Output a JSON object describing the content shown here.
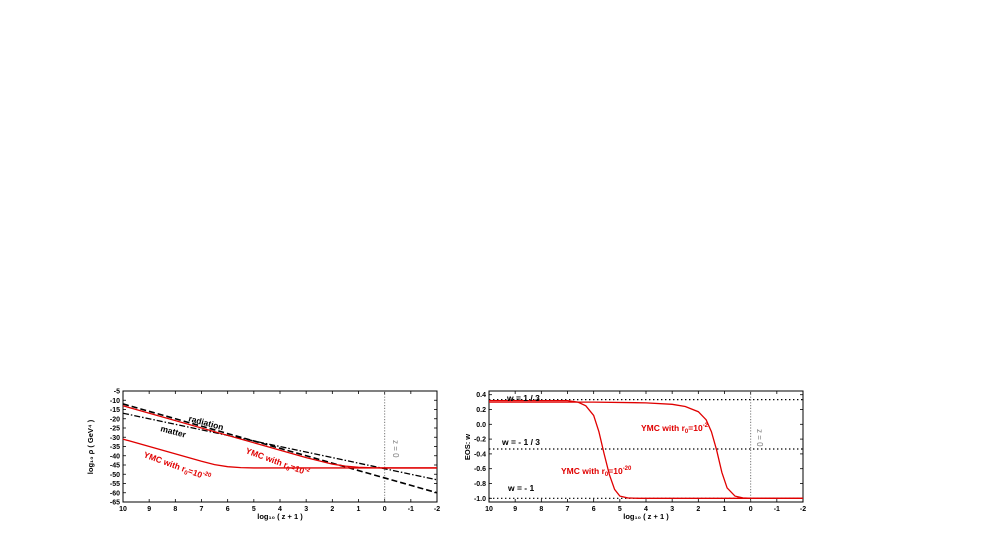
{
  "chart_data": [
    {
      "type": "line",
      "xlabel": "log₁₀ ( z + 1 )",
      "ylabel": "log₁₀ ρ ( GeV⁴ )",
      "xlim": [
        10,
        -2
      ],
      "ylim": [
        -65,
        -5
      ],
      "x_ticks": [
        10,
        9,
        8,
        7,
        6,
        5,
        4,
        3,
        2,
        1,
        0,
        -1,
        -2
      ],
      "y_ticks": [
        -5,
        -10,
        -15,
        -20,
        -25,
        -30,
        -35,
        -40,
        -45,
        -50,
        -55,
        -60,
        -65
      ],
      "vline": {
        "x": 0,
        "label": "z = 0"
      },
      "series": [
        {
          "name": "radiation",
          "style": "dashed",
          "color": "#000000",
          "x": [
            10,
            -2
          ],
          "y": [
            -12,
            -60
          ]
        },
        {
          "name": "matter",
          "style": "dashdot",
          "color": "#000000",
          "x": [
            10,
            -2
          ],
          "y": [
            -17,
            -53
          ]
        },
        {
          "name": "YMC with r₀=10⁻²",
          "style": "solid",
          "color": "#e00000",
          "x": [
            10,
            3,
            2,
            1.5,
            1,
            0.5,
            0,
            -2
          ],
          "y": [
            -13,
            -41,
            -44.5,
            -45.6,
            -46.2,
            -46.5,
            -46.6,
            -46.6
          ]
        },
        {
          "name": "YMC with r₀=10⁻²⁰",
          "style": "solid",
          "color": "#e00000",
          "x": [
            10,
            7,
            6.5,
            6,
            5.5,
            5,
            0,
            -2
          ],
          "y": [
            -31,
            -43,
            -44.8,
            -45.9,
            -46.4,
            -46.6,
            -46.6,
            -46.6
          ]
        }
      ],
      "annotations": {
        "radiation": "radiation",
        "matter": "matter",
        "ymc_a_prefix": "YMC with r",
        "ymc_a_sub": "0",
        "ymc_a_suffix": "=10",
        "ymc_a_exp": "-2",
        "ymc_b_prefix": "YMC with r",
        "ymc_b_sub": "0",
        "ymc_b_suffix": "=10",
        "ymc_b_exp": "-20"
      }
    },
    {
      "type": "line",
      "xlabel": "log₁₀ ( z + 1 )",
      "ylabel": "EOS: w",
      "xlim": [
        10,
        -2
      ],
      "ylim": [
        -1.05,
        0.45
      ],
      "x_ticks": [
        10,
        9,
        8,
        7,
        6,
        5,
        4,
        3,
        2,
        1,
        0,
        -1,
        -2
      ],
      "y_ticks": [
        0.4,
        0.2,
        0.0,
        -0.2,
        -0.4,
        -0.6,
        -0.8,
        -1.0
      ],
      "y_tick_labels": [
        "0.4",
        "0.2",
        "0.0",
        "-0.2",
        "-0.4",
        "-0.6",
        "-0.8",
        "-1.0"
      ],
      "vline": {
        "x": 0,
        "label": "z = 0"
      },
      "hlines": [
        {
          "y": 0.3333,
          "label": "w = 1 / 3"
        },
        {
          "y": -0.3333,
          "label": "w = - 1 / 3"
        },
        {
          "y": -1.0,
          "label": "w = - 1"
        }
      ],
      "series": [
        {
          "name": "YMC with r₀=10⁻²",
          "style": "solid",
          "color": "#e00000",
          "x": [
            10,
            6,
            4,
            3,
            2.5,
            2,
            1.7,
            1.5,
            1.3,
            1.1,
            0.9,
            0.6,
            0.3,
            0,
            -2
          ],
          "y": [
            0.3,
            0.3,
            0.29,
            0.27,
            0.24,
            0.17,
            0.06,
            -0.1,
            -0.35,
            -0.65,
            -0.86,
            -0.97,
            -0.995,
            -1.0,
            -1.0
          ]
        },
        {
          "name": "YMC with r₀=10⁻²⁰",
          "style": "solid",
          "color": "#e00000",
          "x": [
            10,
            7,
            6.6,
            6.3,
            6.0,
            5.8,
            5.6,
            5.4,
            5.2,
            5.0,
            4.7,
            4.3,
            -2
          ],
          "y": [
            0.32,
            0.32,
            0.3,
            0.25,
            0.12,
            -0.1,
            -0.4,
            -0.68,
            -0.88,
            -0.97,
            -0.995,
            -1.0,
            -1.0
          ]
        }
      ],
      "annotations": {
        "ymc_a_prefix": "YMC with r",
        "ymc_a_sub": "0",
        "ymc_a_suffix": "=10",
        "ymc_a_exp": "-2",
        "ymc_b_prefix": "YMC with r",
        "ymc_b_sub": "0",
        "ymc_b_suffix": "=10",
        "ymc_b_exp": "-20"
      }
    }
  ]
}
